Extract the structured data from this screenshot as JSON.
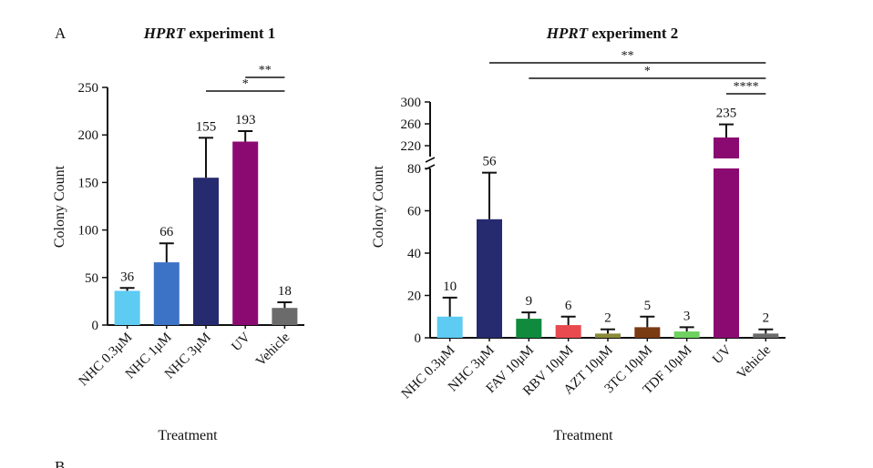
{
  "panel_label": "A",
  "panel_label_next": "B",
  "chart_data": [
    {
      "type": "bar",
      "title_italic": "HPRT",
      "title_rest": " experiment 1",
      "xlabel": "Treatment",
      "ylabel": "Colony Count",
      "ylim": [
        0,
        250
      ],
      "yticks": [
        0,
        50,
        100,
        150,
        200,
        250
      ],
      "categories": [
        "NHC 0.3μM",
        "NHC 1μM",
        "NHC 3μM",
        "UV",
        "Vehicle"
      ],
      "values": [
        36,
        66,
        155,
        193,
        18
      ],
      "errors": [
        3,
        20,
        42,
        11,
        6
      ],
      "value_labels": [
        "36",
        "66",
        "155",
        "193",
        "18"
      ],
      "colors": [
        "#5ecbf2",
        "#3d73c6",
        "#262a6e",
        "#8b0a72",
        "#6b6b6b"
      ],
      "significance": [
        {
          "from": 2,
          "to": 4,
          "label": "*"
        },
        {
          "from": 3,
          "to": 4,
          "label": "**"
        }
      ]
    },
    {
      "type": "bar",
      "title_italic": "HPRT",
      "title_rest": " experiment 2",
      "xlabel": "Treatment",
      "ylabel": "Colony Count",
      "broken_axis": true,
      "lower_range": [
        0,
        80
      ],
      "upper_range": [
        200,
        300
      ],
      "lower_ticks": [
        0,
        20,
        40,
        60,
        80
      ],
      "upper_ticks": [
        220,
        260,
        300
      ],
      "categories": [
        "NHC 0.3μM",
        "NHC 3μM",
        "FAV 10μM",
        "RBV 10μM",
        "AZT 10μM",
        "3TC 10μM",
        "TDF 10μM",
        "UV",
        "Vehicle"
      ],
      "values": [
        10,
        56,
        9,
        6,
        2,
        5,
        3,
        235,
        2
      ],
      "errors": [
        9,
        22,
        3,
        4,
        2,
        5,
        2,
        24,
        2
      ],
      "value_labels": [
        "10",
        "56",
        "9",
        "6",
        "2",
        "5",
        "3",
        "235",
        "2"
      ],
      "colors": [
        "#5ecbf2",
        "#262a6e",
        "#108a3c",
        "#e84a4f",
        "#8a8a3a",
        "#7a3a12",
        "#6fd160",
        "#8b0a72",
        "#6b6b6b"
      ],
      "significance": [
        {
          "from": 1,
          "to": 8,
          "label": "**"
        },
        {
          "from": 2,
          "to": 8,
          "label": "*"
        },
        {
          "from": 7,
          "to": 8,
          "label": "****"
        }
      ]
    }
  ]
}
